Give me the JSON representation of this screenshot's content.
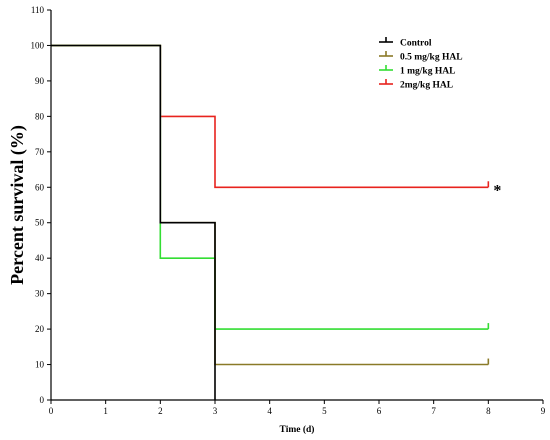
{
  "chart_data": {
    "type": "line",
    "subtype": "kaplan-meier step",
    "title": "",
    "xlabel": "Time (d)",
    "ylabel": "Percent survival (%)",
    "xlim": [
      0,
      9
    ],
    "ylim": [
      0,
      110
    ],
    "x_ticks": [
      "0",
      "1",
      "2",
      "3",
      "4",
      "5",
      "6",
      "7",
      "8",
      "9"
    ],
    "y_ticks": [
      "0",
      "10",
      "20",
      "30",
      "40",
      "50",
      "60",
      "70",
      "80",
      "90",
      "100",
      "110"
    ],
    "grid": false,
    "legend_position": "top-right",
    "series": [
      {
        "name": "Control",
        "color": "#000000",
        "points": [
          [
            0,
            100
          ],
          [
            2,
            100
          ],
          [
            2,
            50
          ],
          [
            3,
            50
          ],
          [
            3,
            0
          ]
        ],
        "censor_mark": null
      },
      {
        "name": "0.5 mg/kg HAL",
        "color": "#8a7a28",
        "points": [
          [
            0,
            100
          ],
          [
            2,
            100
          ],
          [
            2,
            50
          ],
          [
            3,
            50
          ],
          [
            3,
            10
          ],
          [
            8,
            10
          ]
        ],
        "censor_mark": [
          8,
          10
        ]
      },
      {
        "name": "1 mg/kg HAL",
        "color": "#33dd33",
        "points": [
          [
            0,
            100
          ],
          [
            2,
            100
          ],
          [
            2,
            40
          ],
          [
            3,
            40
          ],
          [
            3,
            20
          ],
          [
            8,
            20
          ]
        ],
        "censor_mark": [
          8,
          20
        ]
      },
      {
        "name": "2mg/kg HAL",
        "color": "#e8231e",
        "points": [
          [
            0,
            100
          ],
          [
            2,
            100
          ],
          [
            2,
            80
          ],
          [
            3,
            80
          ],
          [
            3,
            60
          ],
          [
            8,
            60
          ]
        ],
        "censor_mark": [
          8,
          60
        ]
      }
    ],
    "annotations": [
      {
        "text": "*",
        "x": 8,
        "y": 60,
        "series": "2mg/kg HAL"
      }
    ]
  }
}
